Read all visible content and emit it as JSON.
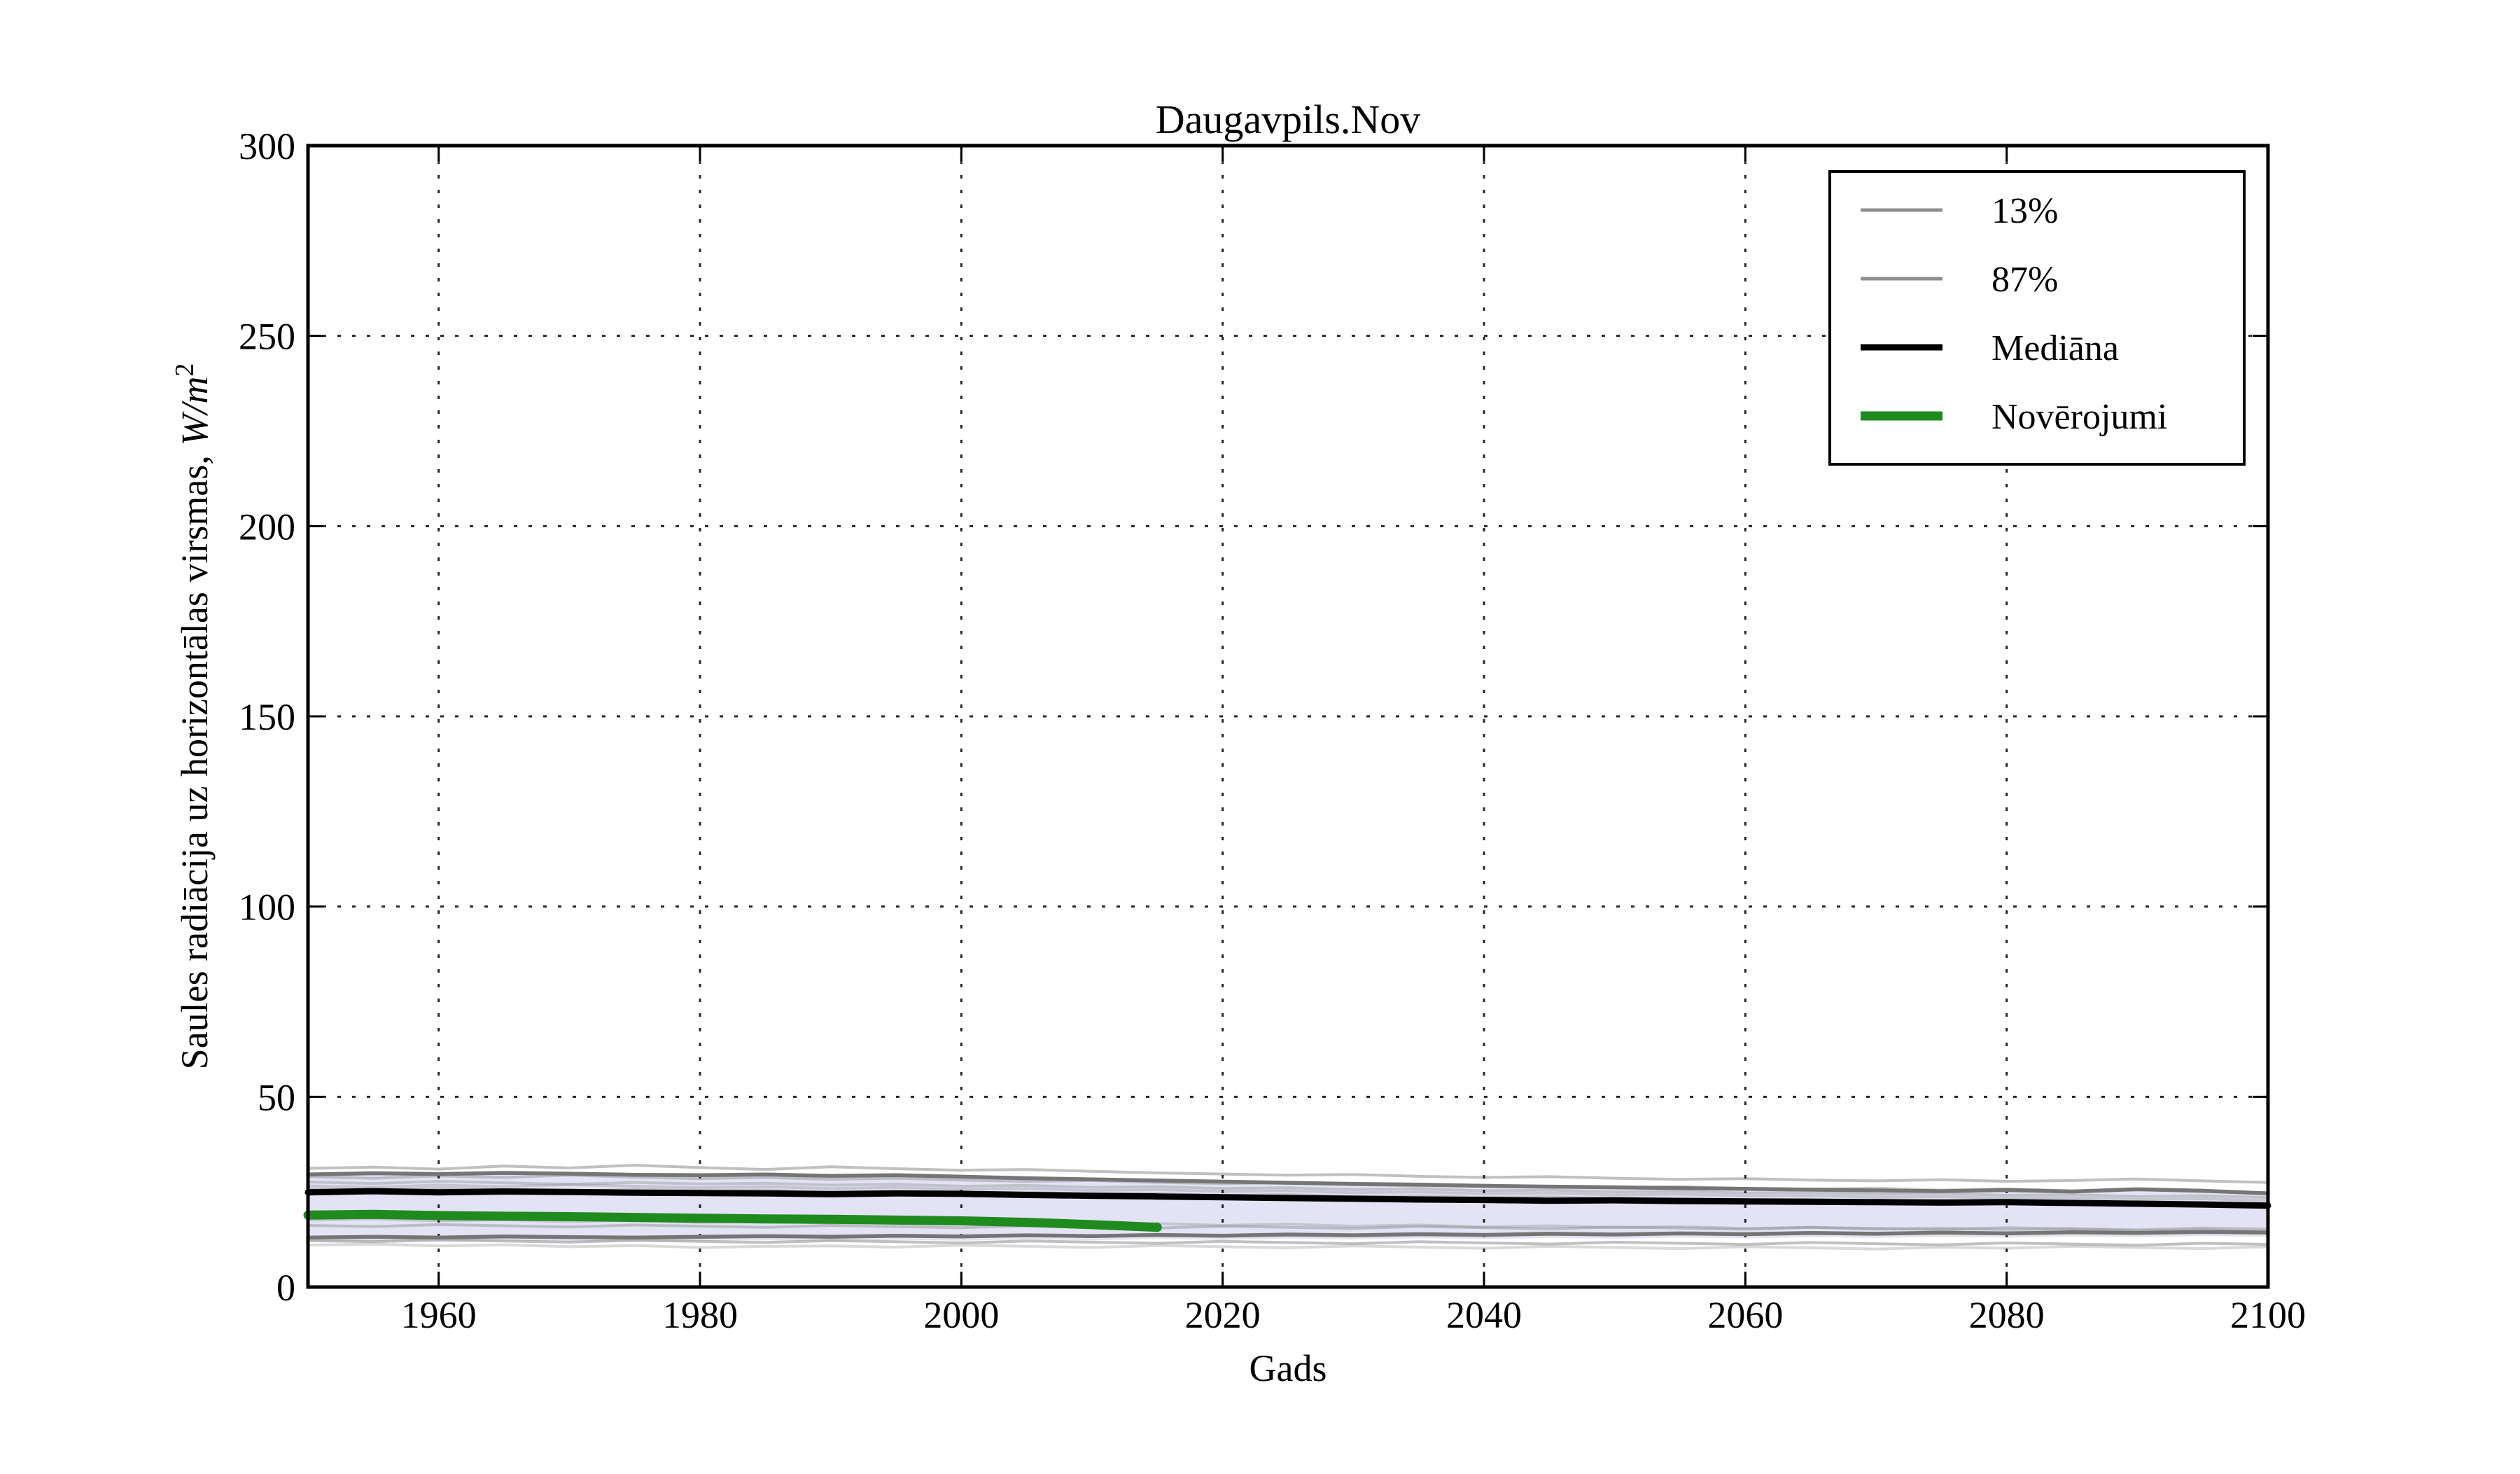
{
  "figure": {
    "title": "Daugavpils.Nov",
    "xlabel": "Gads",
    "ylabel_text": "Saules radiācija uz horizontālas virsmas, ",
    "ylabel_math": "W/m",
    "ylabel_sup": "2",
    "background": "#ffffff",
    "spine_color": "#000000"
  },
  "chart_data": {
    "type": "line",
    "title": "Daugavpils.Nov",
    "xlabel": "Gads",
    "ylabel": "Saules radiācija uz horizontālas virsmas, W/m²",
    "xlim": [
      1950,
      2100
    ],
    "ylim": [
      0,
      300
    ],
    "xticks": [
      1960,
      1980,
      2000,
      2020,
      2040,
      2060,
      2080,
      2100
    ],
    "yticks": [
      0,
      50,
      100,
      150,
      200,
      250,
      300
    ],
    "grid": true,
    "grid_style": "dotted",
    "legend_position": "upper right",
    "x": [
      1950,
      1955,
      1960,
      1965,
      1970,
      1975,
      1980,
      1985,
      1990,
      1995,
      2000,
      2005,
      2010,
      2015,
      2020,
      2025,
      2030,
      2035,
      2040,
      2045,
      2050,
      2055,
      2060,
      2065,
      2070,
      2075,
      2080,
      2085,
      2090,
      2095,
      2100
    ],
    "band": {
      "name": "ensemble-envelope",
      "fill": "#e3e3f5",
      "upper": [
        30.1,
        30.5,
        30.2,
        30.6,
        30.3,
        30.0,
        29.9,
        30.1,
        29.7,
        29.9,
        29.5,
        29.1,
        28.8,
        28.5,
        28.2,
        27.9,
        27.6,
        27.4,
        27.1,
        26.9,
        26.7,
        26.5,
        26.3,
        26.1,
        25.9,
        25.7,
        26.0,
        25.6,
        26.2,
        25.8,
        25.1
      ],
      "lower": [
        11.9,
        12.1,
        11.9,
        12.2,
        12.0,
        11.9,
        12.1,
        12.3,
        12.1,
        12.4,
        12.2,
        12.5,
        12.3,
        12.6,
        12.4,
        12.7,
        12.5,
        12.8,
        12.6,
        12.9,
        12.7,
        13.0,
        12.8,
        13.1,
        12.9,
        13.2,
        13.0,
        13.3,
        13.1,
        13.4,
        13.2
      ]
    },
    "ensemble_members": {
      "color": "#828282",
      "width": 4,
      "opacities": [
        0.5,
        0.4,
        0.35,
        0.3,
        0.35,
        0.3,
        0.4,
        0.5,
        0.3
      ],
      "series": [
        [
          31.2,
          31.5,
          31.0,
          31.8,
          31.3,
          32.0,
          31.4,
          30.9,
          31.6,
          31.1,
          30.7,
          30.9,
          30.4,
          30.0,
          29.7,
          29.4,
          29.6,
          29.1,
          28.8,
          29.0,
          28.6,
          28.3,
          28.5,
          28.1,
          27.9,
          28.2,
          27.8,
          28.0,
          28.4,
          27.9,
          27.5
        ],
        [
          29.0,
          28.6,
          29.2,
          28.8,
          29.4,
          28.9,
          28.5,
          28.8,
          28.3,
          28.6,
          28.1,
          27.8,
          28.0,
          27.5,
          27.2,
          27.4,
          26.9,
          26.6,
          26.8,
          26.3,
          26.1,
          26.4,
          25.9,
          25.7,
          26.0,
          25.5,
          25.8,
          25.3,
          25.6,
          25.1,
          24.8
        ],
        [
          27.6,
          27.2,
          27.8,
          27.4,
          27.0,
          27.5,
          27.1,
          27.3,
          26.8,
          27.0,
          26.5,
          26.7,
          26.2,
          26.4,
          25.9,
          26.1,
          25.6,
          25.8,
          25.3,
          25.5,
          25.0,
          25.2,
          24.7,
          24.9,
          24.4,
          24.6,
          24.1,
          24.3,
          23.8,
          24.0,
          23.5
        ],
        [
          26.6,
          26.2,
          26.8,
          26.4,
          26.9,
          26.5,
          26.1,
          26.4,
          25.9,
          26.2,
          25.7,
          25.9,
          25.4,
          25.6,
          25.1,
          25.3,
          24.8,
          25.0,
          24.5,
          24.7,
          24.2,
          24.4,
          23.9,
          24.1,
          23.6,
          23.8,
          23.3,
          23.5,
          23.0,
          23.2,
          22.7
        ],
        [
          25.8,
          25.4,
          26.0,
          25.6,
          25.2,
          25.7,
          25.3,
          25.5,
          25.0,
          25.2,
          24.7,
          24.9,
          24.4,
          24.6,
          24.1,
          24.3,
          23.8,
          24.0,
          23.5,
          23.7,
          23.2,
          23.4,
          22.9,
          23.1,
          22.6,
          22.8,
          22.3,
          22.5,
          22.0,
          22.2,
          21.7
        ],
        [
          17.6,
          17.9,
          17.4,
          17.7,
          17.2,
          17.5,
          17.0,
          17.3,
          16.8,
          17.1,
          16.6,
          16.9,
          16.4,
          16.7,
          16.2,
          16.5,
          16.0,
          16.3,
          15.8,
          16.1,
          15.6,
          15.9,
          15.4,
          15.7,
          15.2,
          15.5,
          15.0,
          15.3,
          14.8,
          15.1,
          14.6
        ],
        [
          16.2,
          15.9,
          16.4,
          16.1,
          15.8,
          16.3,
          16.0,
          15.7,
          16.2,
          15.9,
          15.6,
          16.1,
          15.8,
          15.5,
          16.0,
          15.7,
          15.4,
          15.9,
          15.6,
          15.3,
          15.8,
          15.5,
          15.2,
          15.7,
          15.4,
          15.1,
          15.6,
          15.3,
          15.0,
          15.5,
          15.2
        ],
        [
          12.2,
          11.9,
          12.4,
          12.1,
          11.8,
          12.3,
          12.0,
          11.7,
          12.2,
          11.9,
          11.6,
          12.1,
          11.8,
          11.5,
          12.0,
          11.7,
          11.4,
          11.9,
          11.6,
          11.3,
          11.8,
          11.5,
          11.2,
          11.7,
          11.4,
          11.1,
          11.6,
          11.3,
          11.0,
          11.5,
          11.2
        ],
        [
          11.0,
          11.3,
          10.8,
          11.1,
          10.6,
          10.9,
          10.4,
          10.7,
          10.8,
          10.5,
          11.0,
          10.7,
          10.4,
          10.9,
          10.6,
          10.3,
          10.8,
          10.5,
          10.2,
          10.7,
          10.4,
          10.1,
          10.6,
          10.3,
          10.0,
          10.5,
          10.2,
          10.7,
          10.4,
          10.1,
          10.6
        ]
      ]
    },
    "series": [
      {
        "name": "13%",
        "color": "#757575",
        "width": 5.5,
        "values": [
          13.0,
          13.2,
          13.0,
          13.3,
          13.1,
          13.0,
          13.2,
          13.4,
          13.2,
          13.5,
          13.3,
          13.6,
          13.4,
          13.7,
          13.5,
          13.8,
          13.6,
          13.9,
          13.7,
          14.0,
          13.8,
          14.1,
          13.9,
          14.2,
          14.0,
          14.3,
          14.1,
          14.4,
          14.2,
          14.5,
          14.3
        ]
      },
      {
        "name": "87%",
        "color": "#757575",
        "width": 5.5,
        "values": [
          29.6,
          29.9,
          29.7,
          30.0,
          29.8,
          29.5,
          29.4,
          29.6,
          29.2,
          29.4,
          29.0,
          28.6,
          28.3,
          28.0,
          27.7,
          27.4,
          27.1,
          26.9,
          26.6,
          26.4,
          26.2,
          26.0,
          25.8,
          25.6,
          25.4,
          25.2,
          25.5,
          25.1,
          25.7,
          25.3,
          24.6
        ]
      },
      {
        "name": "Mediāna",
        "color": "#000000",
        "width": 9,
        "values": [
          24.9,
          25.2,
          24.9,
          25.1,
          25.0,
          24.8,
          24.7,
          24.6,
          24.4,
          24.6,
          24.5,
          24.2,
          24.0,
          23.8,
          23.6,
          23.4,
          23.2,
          23.0,
          22.9,
          22.7,
          22.8,
          22.6,
          22.5,
          22.4,
          22.3,
          22.2,
          22.3,
          22.1,
          21.9,
          21.7,
          21.4
        ]
      }
    ],
    "observations": {
      "name": "Novērojumi",
      "color": "#1f8b1f",
      "width": 13,
      "x": [
        1950,
        1955,
        1960,
        1965,
        1970,
        1975,
        1980,
        1985,
        1990,
        1995,
        2000,
        2005,
        2010,
        2015
      ],
      "values": [
        18.9,
        19.1,
        18.8,
        18.6,
        18.5,
        18.3,
        18.1,
        17.9,
        17.8,
        17.6,
        17.4,
        17.0,
        16.4,
        15.7
      ]
    },
    "legend": [
      {
        "label": "13%",
        "color": "#8f8f8f",
        "width": 5
      },
      {
        "label": "87%",
        "color": "#8f8f8f",
        "width": 5
      },
      {
        "label": "Mediāna",
        "color": "#000000",
        "width": 9
      },
      {
        "label": "Novērojumi",
        "color": "#1f8b1f",
        "width": 13
      }
    ]
  }
}
